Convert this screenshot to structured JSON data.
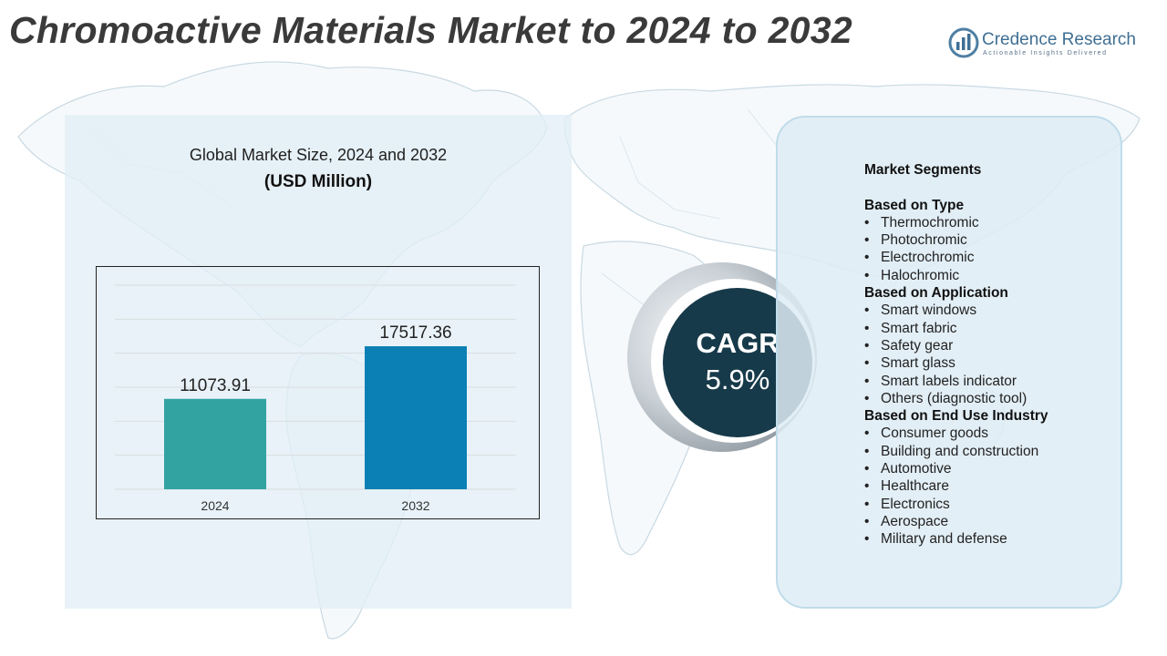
{
  "header": {
    "title": "Chromoactive Materials Market to 2024 to 2032"
  },
  "brand": {
    "name": "Credence Research",
    "tagline": "Actionable Insights Delivered",
    "logo_icon": "credence-logo-icon"
  },
  "chart_panel": {
    "title": "Global Market Size, 2024 and 2032",
    "unit": "(USD Million)"
  },
  "chart_data": {
    "type": "bar",
    "categories": [
      "2024",
      "2032"
    ],
    "values": [
      11073.91,
      17517.36
    ],
    "value_labels": [
      "11073.91",
      "17517.36"
    ],
    "ylim": [
      0,
      25000
    ],
    "grid": true,
    "colors": [
      "#33a3a2",
      "#0a80b4"
    ]
  },
  "cagr": {
    "label": "CAGR",
    "value": "5.9%"
  },
  "segments": {
    "heading": "Market Segments",
    "groups": [
      {
        "title": "Based on Type",
        "items": [
          "Thermochromic",
          "Photochromic",
          "Electrochromic",
          "Halochromic"
        ]
      },
      {
        "title": "Based on Application",
        "items": [
          "Smart windows",
          "Smart fabric",
          "Safety gear",
          "Smart glass",
          "Smart labels indicator",
          "Others (diagnostic tool)"
        ]
      },
      {
        "title": "Based on End Use Industry",
        "items": [
          "Consumer goods",
          "Building and construction",
          "Automotive",
          "Healthcare",
          "Electronics",
          "Aerospace",
          "Military and defense"
        ]
      }
    ]
  },
  "colors": {
    "title": "#3a3a3a",
    "brand": "#3f6f94",
    "cagr_circle": "#173a4a",
    "panel": "#e2eef6"
  }
}
